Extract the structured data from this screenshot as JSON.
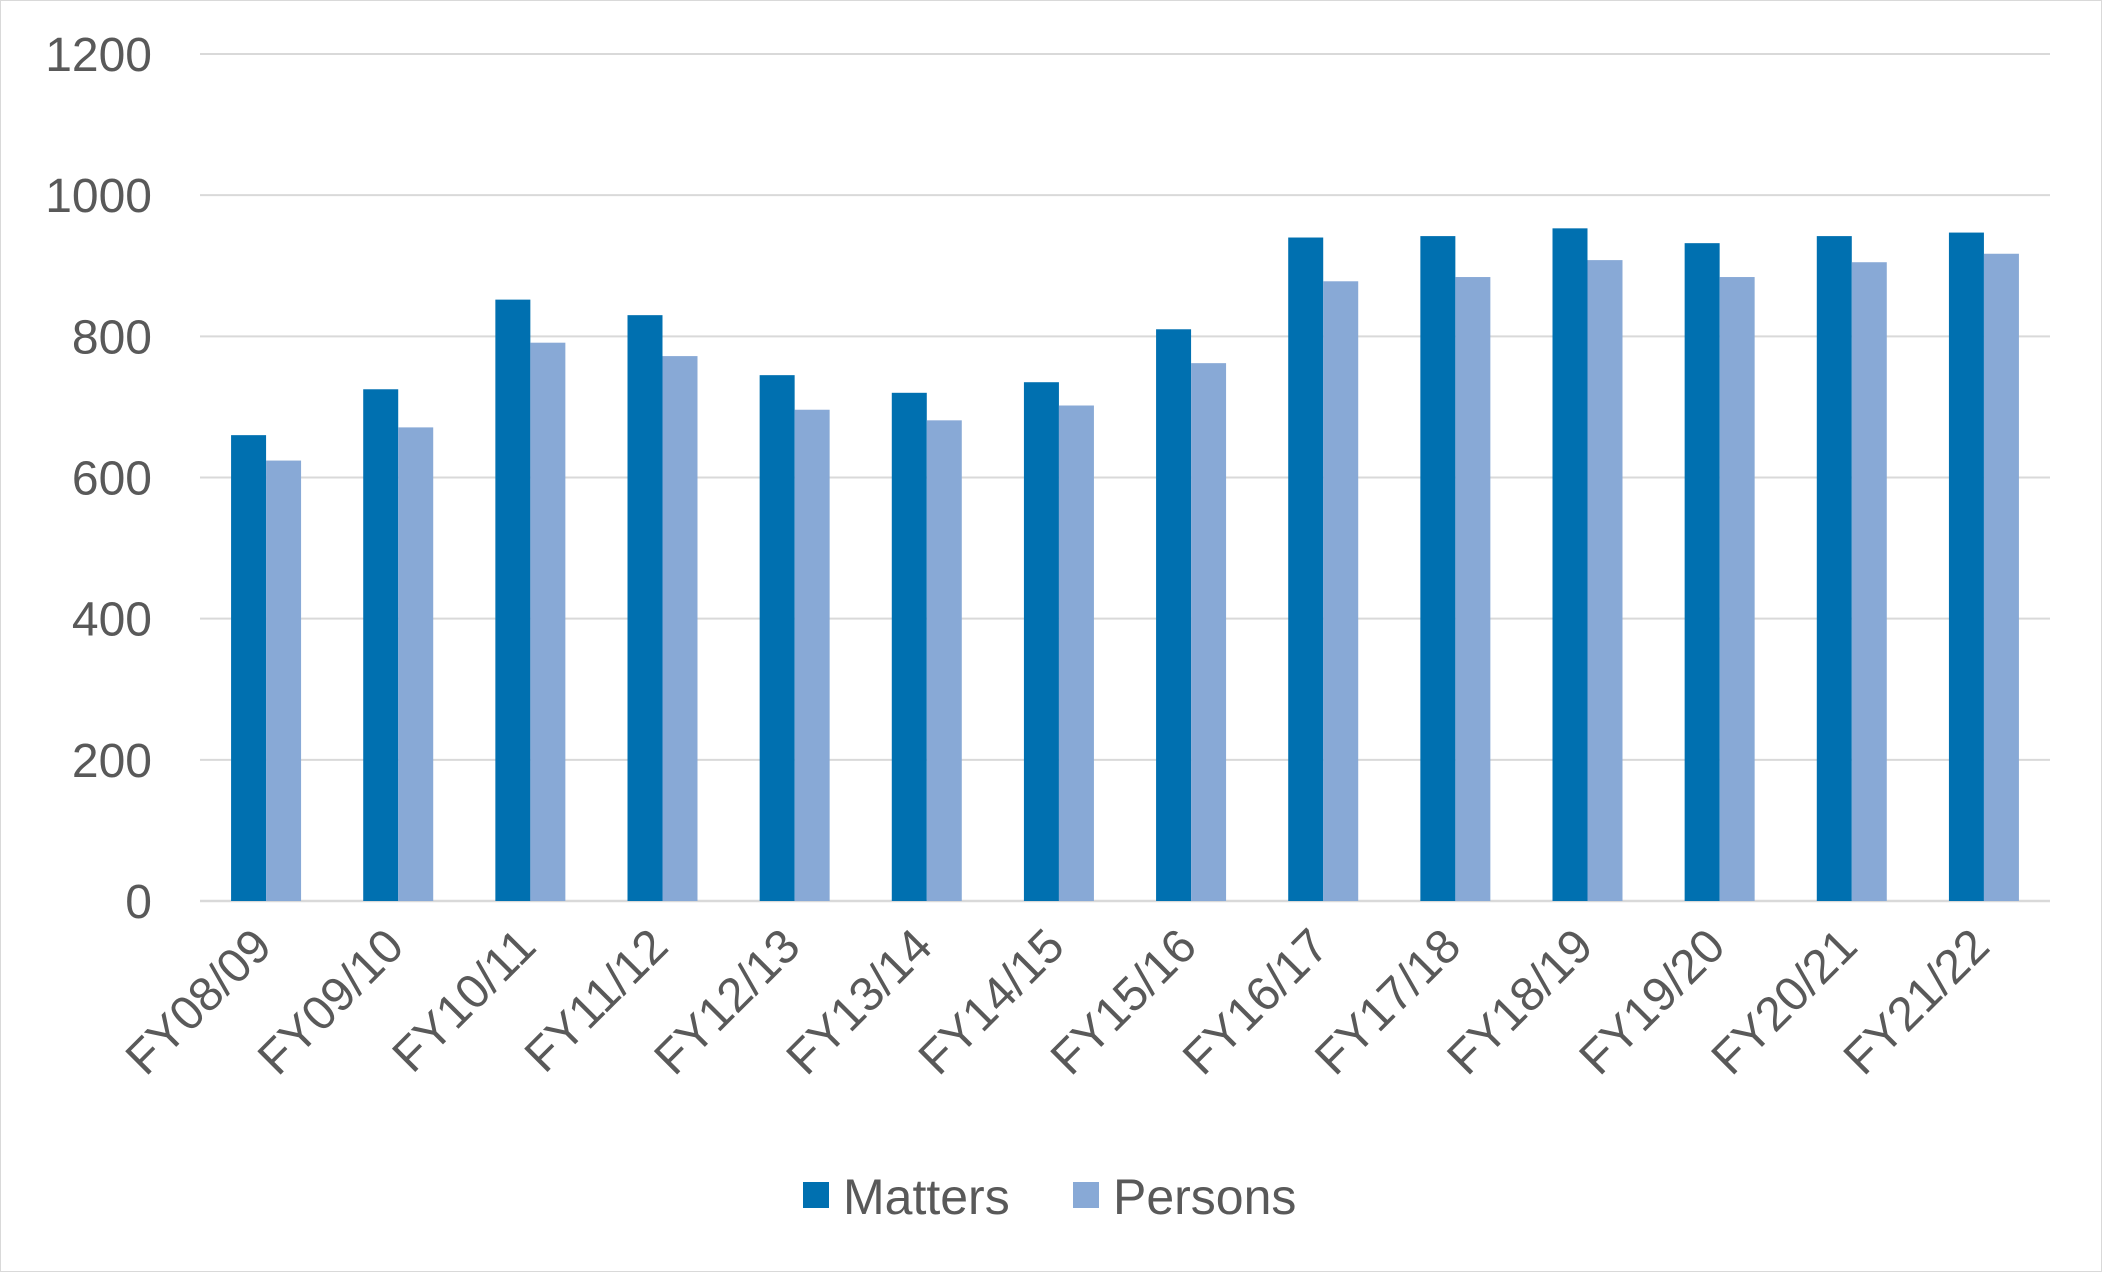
{
  "chart_data": {
    "type": "bar",
    "title": "",
    "xlabel": "",
    "ylabel": "",
    "ylim": [
      0,
      1200
    ],
    "yticks": [
      0,
      200,
      400,
      600,
      800,
      1000,
      1200
    ],
    "grid": true,
    "legend_position": "bottom",
    "categories": [
      "FY08/09",
      "FY09/10",
      "FY10/11",
      "FY11/12",
      "FY12/13",
      "FY13/14",
      "FY14/15",
      "FY15/16",
      "FY16/17",
      "FY17/18",
      "FY18/19",
      "FY19/20",
      "FY20/21",
      "FY21/22"
    ],
    "series": [
      {
        "name": "Matters",
        "color": "#0070b0",
        "values": [
          660,
          725,
          852,
          830,
          745,
          720,
          735,
          810,
          940,
          942,
          953,
          932,
          942,
          947
        ]
      },
      {
        "name": "Persons",
        "color": "#88a9d6",
        "values": [
          624,
          671,
          791,
          772,
          696,
          681,
          702,
          762,
          878,
          884,
          908,
          884,
          905,
          917
        ]
      }
    ]
  }
}
